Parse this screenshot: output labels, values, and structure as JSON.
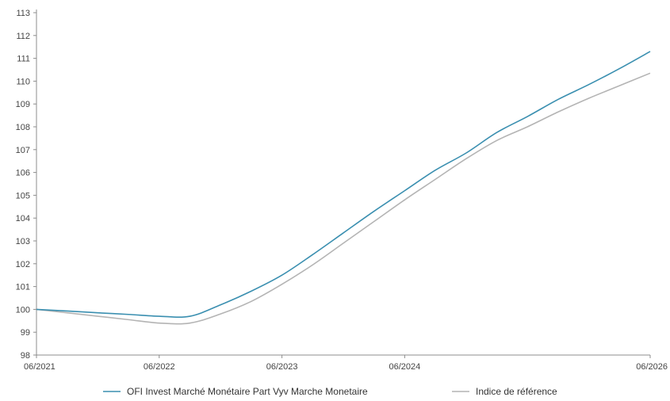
{
  "chart_data": {
    "type": "line",
    "title": "",
    "xlabel": "",
    "ylabel": "",
    "ylim": [
      98,
      113
    ],
    "yticks": [
      98,
      99,
      100,
      101,
      102,
      103,
      104,
      105,
      106,
      107,
      108,
      109,
      110,
      111,
      112,
      113
    ],
    "xlim": [
      "06/2021",
      "06/2026"
    ],
    "xticks": [
      "06/2021",
      "06/2022",
      "06/2023",
      "06/2024",
      "06/2026"
    ],
    "grid": false,
    "legend_position": "bottom",
    "x": [
      "06/2021",
      "09/2021",
      "12/2021",
      "03/2022",
      "06/2022",
      "09/2022",
      "12/2022",
      "03/2023",
      "06/2023",
      "09/2023",
      "12/2023",
      "03/2024",
      "06/2024",
      "09/2024",
      "12/2024",
      "03/2025",
      "06/2025",
      "09/2025",
      "12/2025",
      "03/2026",
      "06/2026"
    ],
    "series": [
      {
        "name": "OFI Invest Marché Monétaire Part Vyv Marche Monetaire",
        "color": "#3a8fb0",
        "values": [
          100.0,
          99.93,
          99.85,
          99.78,
          99.7,
          99.7,
          100.2,
          100.8,
          101.5,
          102.4,
          103.35,
          104.3,
          105.2,
          106.1,
          106.85,
          107.75,
          108.45,
          109.2,
          109.85,
          110.55,
          111.3
        ]
      },
      {
        "name": "Indice de référence",
        "color": "#b4b4b4",
        "values": [
          100.0,
          99.85,
          99.7,
          99.55,
          99.4,
          99.4,
          99.8,
          100.35,
          101.1,
          101.95,
          102.9,
          103.85,
          104.8,
          105.7,
          106.6,
          107.4,
          108.0,
          108.65,
          109.25,
          109.8,
          110.35
        ]
      }
    ]
  }
}
